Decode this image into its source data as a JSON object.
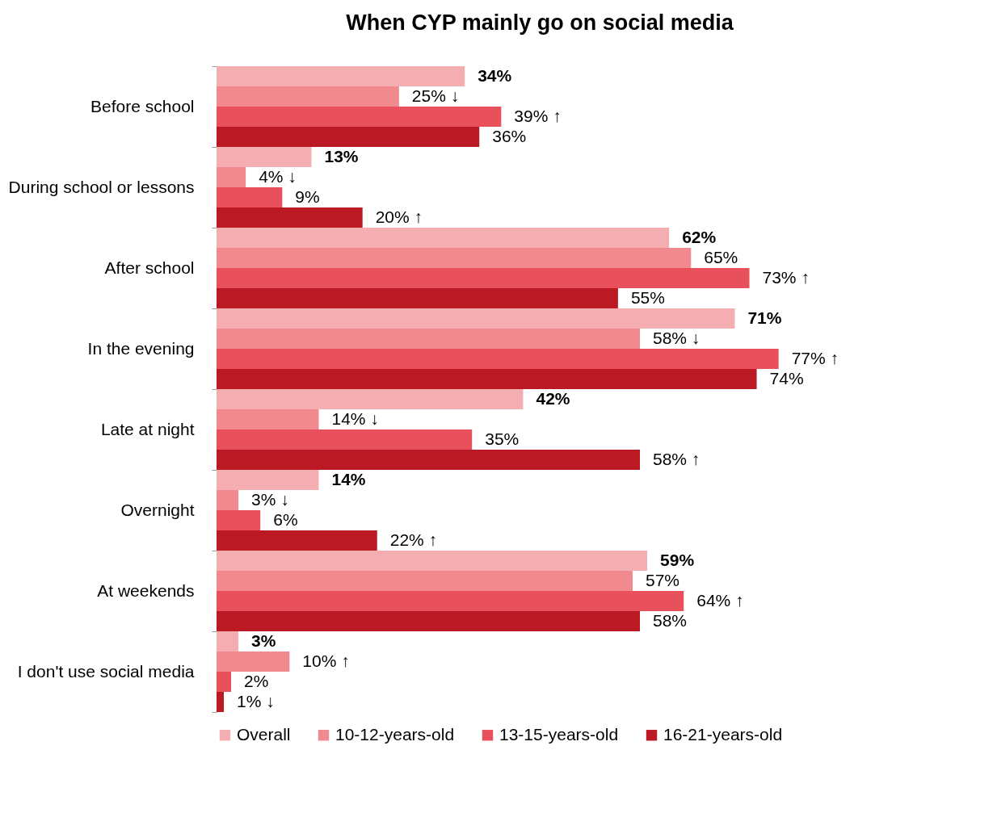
{
  "chart_data": {
    "type": "bar",
    "orientation": "horizontal",
    "title": "When CYP mainly go on social media",
    "categories": [
      "Before school",
      "During school or lessons",
      "After school",
      "In the evening",
      "Late at night",
      "Overnight",
      "At weekends",
      "I don't use social media"
    ],
    "series": [
      {
        "name": "Overall",
        "color": "#f4aeb2",
        "values": [
          34,
          13,
          62,
          71,
          42,
          14,
          59,
          3
        ],
        "value_labels": [
          "34%",
          "13%",
          "62%",
          "71%",
          "42%",
          "14%",
          "59%",
          "3%"
        ]
      },
      {
        "name": "10-12-years-old",
        "color": "#f08a8f",
        "values": [
          25,
          4,
          65,
          58,
          14,
          3,
          57,
          10
        ],
        "value_labels": [
          "25% ↓",
          "4% ↓",
          "65%",
          "58% ↓",
          "14% ↓",
          "3% ↓",
          "57%",
          "10% ↑"
        ]
      },
      {
        "name": "13-15-years-old",
        "color": "#e8505c",
        "values": [
          39,
          9,
          73,
          77,
          35,
          6,
          64,
          2
        ],
        "value_labels": [
          "39% ↑",
          "9%",
          "73% ↑",
          "77% ↑",
          "35%",
          "6%",
          "64% ↑",
          "2%"
        ]
      },
      {
        "name": "16-21-years-old",
        "color": "#bb1a25",
        "values": [
          36,
          20,
          55,
          74,
          58,
          22,
          58,
          1
        ],
        "value_labels": [
          "36%",
          "20% ↑",
          "55%",
          "74%",
          "58% ↑",
          "22% ↑",
          "58%",
          "1% ↓"
        ]
      }
    ],
    "legend": "bottom"
  }
}
